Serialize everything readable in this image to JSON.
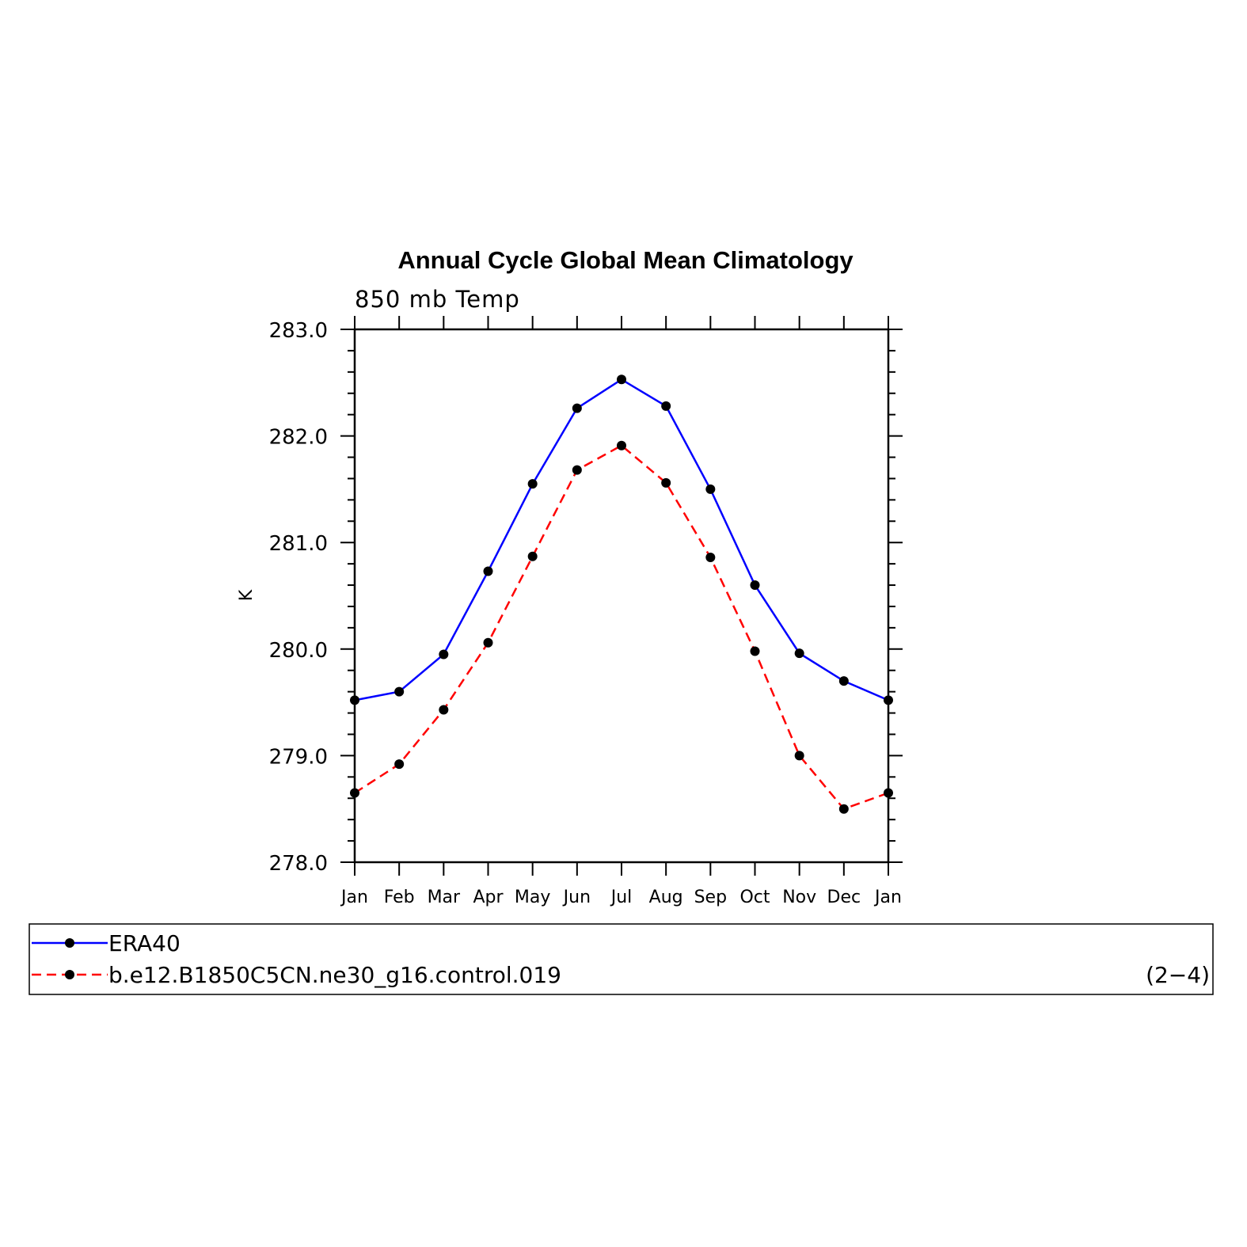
{
  "chart_data": {
    "type": "line",
    "title": "Annual Cycle Global Mean Climatology",
    "subtitle": "850 mb Temp",
    "xlabel": "",
    "ylabel": "K",
    "categories": [
      "Jan",
      "Feb",
      "Mar",
      "Apr",
      "May",
      "Jun",
      "Jul",
      "Aug",
      "Sep",
      "Oct",
      "Nov",
      "Dec",
      "Jan"
    ],
    "ylim": [
      278.0,
      283.0
    ],
    "yticks": [
      "278.0",
      "279.0",
      "280.0",
      "281.0",
      "282.0",
      "283.0"
    ],
    "grid": false,
    "legend_position": "bottom",
    "series": [
      {
        "name": "ERA40",
        "color": "#0000ff",
        "line_style": "solid",
        "marker": "filled-circle",
        "values": [
          279.52,
          279.6,
          279.95,
          280.73,
          281.55,
          282.26,
          282.53,
          282.28,
          281.5,
          280.6,
          279.96,
          279.7,
          279.52
        ]
      },
      {
        "name": "b.e12.B1850C5CN.ne30_g16.control.019",
        "color": "#ff0000",
        "line_style": "dashed",
        "marker": "filled-circle",
        "values": [
          278.65,
          278.92,
          279.43,
          280.06,
          280.87,
          281.68,
          281.91,
          281.56,
          280.86,
          279.98,
          279.0,
          278.5,
          278.65
        ]
      }
    ],
    "annotation": "(2−4)"
  }
}
